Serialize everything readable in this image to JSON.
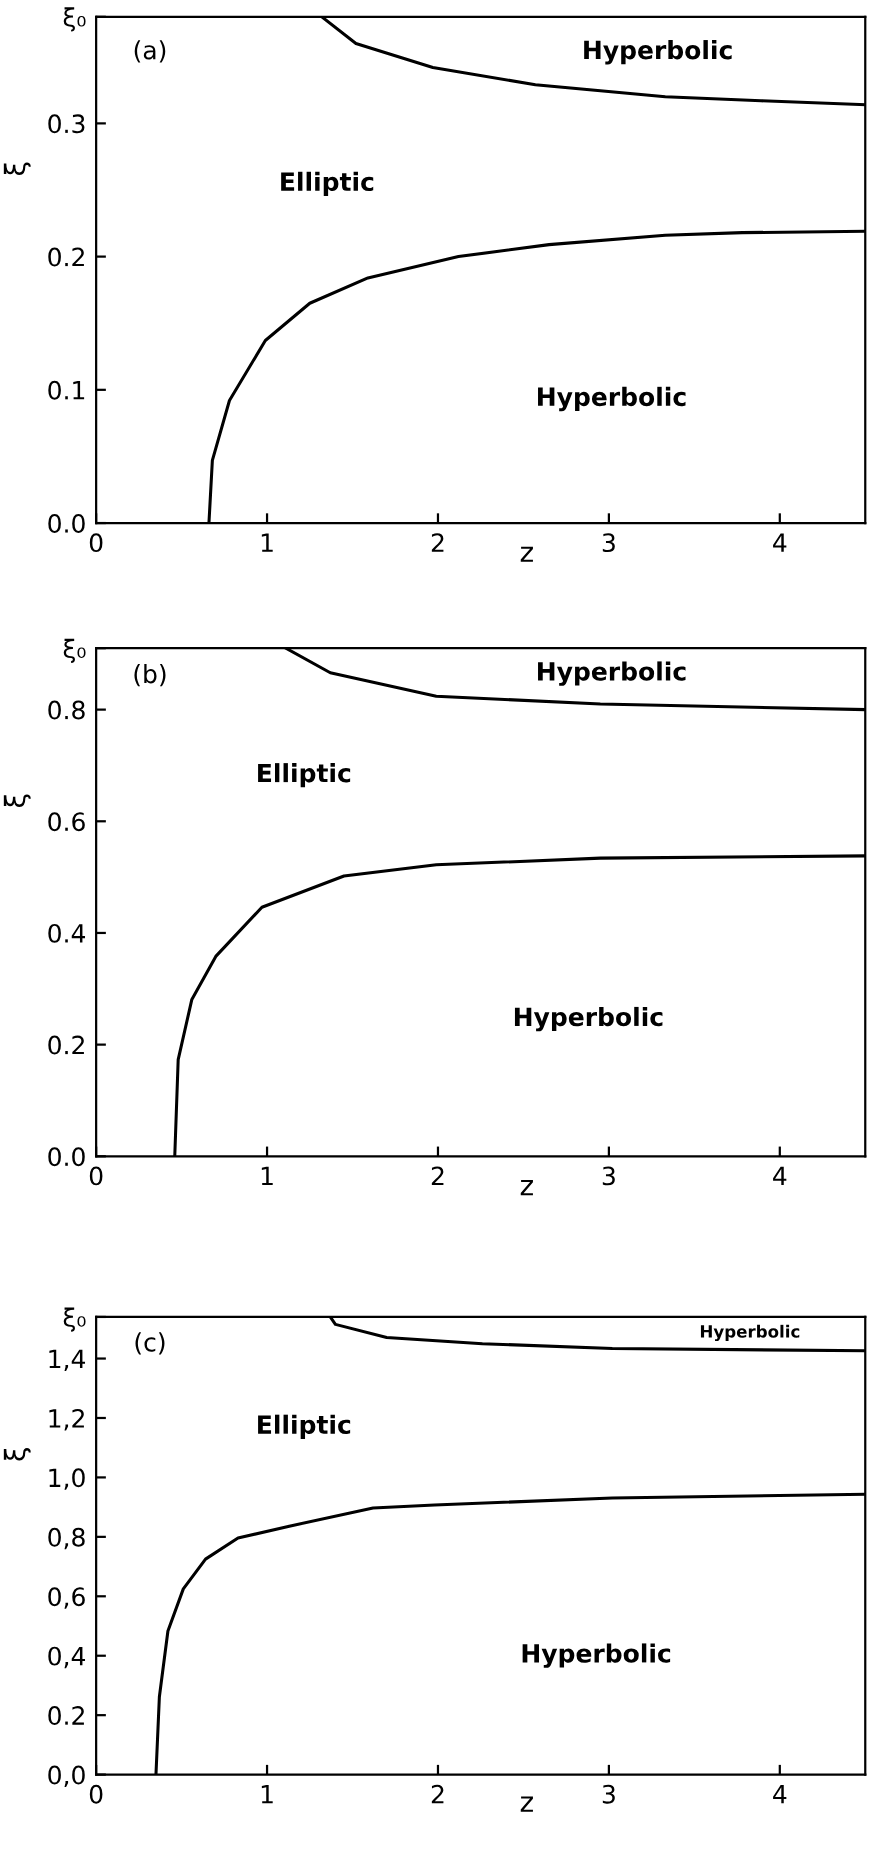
{
  "chart_data": [
    {
      "type": "line",
      "xlabel": "z",
      "ylabel": "ξ",
      "xlim": [
        0,
        4.5
      ],
      "ylim": [
        0,
        0.38
      ],
      "xticks": [
        0,
        1,
        2,
        3,
        4
      ],
      "yticks": [
        {
          "value": 0.0,
          "label": "0.0"
        },
        {
          "value": 0.1,
          "label": "0.1"
        },
        {
          "value": 0.2,
          "label": "0.2"
        },
        {
          "value": 0.3,
          "label": "0.3"
        },
        {
          "value": 0.38,
          "label": "ξ₀"
        }
      ],
      "grid": false,
      "legend": false,
      "marker": "none",
      "line_style": "solid",
      "series": [
        {
          "color": "#000000",
          "x": [
            0.66,
            0.68,
            0.78,
            0.99,
            1.25,
            1.59,
            2.12,
            2.65,
            3.33,
            3.78,
            4.5
          ],
          "values": [
            0,
            0.047,
            0.092,
            0.137,
            0.165,
            0.184,
            0.2,
            0.209,
            0.216,
            0.218,
            0.219
          ]
        },
        {
          "color": "#000000",
          "x": [
            1.32,
            1.52,
            1.97,
            2.57,
            3.33,
            3.89,
            4.5
          ],
          "values": [
            0.38,
            0.36,
            0.342,
            0.329,
            0.32,
            0.317,
            0.314
          ]
        }
      ],
      "annotations": [
        "(a)",
        "Elliptic",
        "Hyperbolic",
        "Hyperbolic"
      ]
    },
    {
      "type": "line",
      "xlabel": "z",
      "ylabel": "ξ",
      "xlim": [
        0,
        4.5
      ],
      "ylim": [
        0,
        0.91
      ],
      "xticks": [
        0,
        1,
        2,
        3,
        4
      ],
      "yticks": [
        {
          "value": 0.0,
          "label": "0.0"
        },
        {
          "value": 0.2,
          "label": "0.2"
        },
        {
          "value": 0.4,
          "label": "0.4"
        },
        {
          "value": 0.6,
          "label": "0.6"
        },
        {
          "value": 0.8,
          "label": "0.8"
        },
        {
          "value": 0.91,
          "label": "ξ₀"
        }
      ],
      "grid": false,
      "legend": false,
      "marker": "none",
      "line_style": "solid",
      "series": [
        {
          "color": "#000000",
          "x": [
            0.46,
            0.48,
            0.56,
            0.7,
            0.97,
            1.45,
            1.99,
            2.95,
            4.5
          ],
          "values": [
            0,
            0.173,
            0.281,
            0.358,
            0.446,
            0.502,
            0.522,
            0.534,
            0.538
          ]
        },
        {
          "color": "#000000",
          "x": [
            1.11,
            1.37,
            1.99,
            2.95,
            4.5
          ],
          "values": [
            0.91,
            0.866,
            0.824,
            0.81,
            0.8
          ]
        }
      ],
      "annotations": [
        "(b)",
        "Elliptic",
        "Hyperbolic",
        "Hyperbolic"
      ]
    },
    {
      "type": "line",
      "xlabel": "z",
      "ylabel": "ξ",
      "xlim": [
        0,
        4.5
      ],
      "ylim": [
        0,
        1.54
      ],
      "xticks": [
        0,
        1,
        2,
        3,
        4
      ],
      "yticks": [
        {
          "value": 0.0,
          "label": "0,0"
        },
        {
          "value": 0.2,
          "label": "0.2"
        },
        {
          "value": 0.4,
          "label": "0,4"
        },
        {
          "value": 0.6,
          "label": "0,6"
        },
        {
          "value": 0.8,
          "label": "0,8"
        },
        {
          "value": 1.0,
          "label": "1,0"
        },
        {
          "value": 1.2,
          "label": "1,2"
        },
        {
          "value": 1.4,
          "label": "1,4"
        },
        {
          "value": 1.54,
          "label": "ξ₀"
        }
      ],
      "grid": false,
      "legend": false,
      "marker": "none",
      "line_style": "solid",
      "series": [
        {
          "color": "#000000",
          "x": [
            0.35,
            0.37,
            0.42,
            0.51,
            0.64,
            0.83,
            1.13,
            1.62,
            1.98,
            3.02,
            4.5
          ],
          "values": [
            0,
            0.262,
            0.483,
            0.625,
            0.725,
            0.796,
            0.836,
            0.897,
            0.907,
            0.931,
            0.943
          ]
        },
        {
          "color": "#000000",
          "x": [
            1.37,
            1.4,
            1.7,
            2.26,
            3.02,
            4.5
          ],
          "values": [
            1.54,
            1.515,
            1.471,
            1.45,
            1.434,
            1.426
          ]
        }
      ],
      "annotations": [
        "(c)",
        "Elliptic",
        "Hyperbolic",
        "Hyperbolic"
      ]
    }
  ]
}
